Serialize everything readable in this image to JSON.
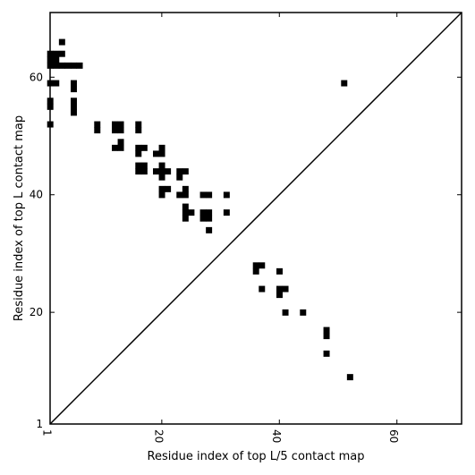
{
  "chart_data": {
    "type": "heatmap",
    "title": "",
    "xlabel": "Residue index of top L/5 contact map",
    "ylabel": "Residue index of top L contact map",
    "xlim": [
      1,
      71
    ],
    "ylim": [
      1,
      71
    ],
    "x_ticks": [
      1,
      20,
      40,
      60
    ],
    "y_ticks": [
      1,
      20,
      40,
      60
    ],
    "grid": false,
    "cell_color": "#000000",
    "diagonal": {
      "from": [
        1,
        1
      ],
      "to": [
        71,
        71
      ]
    },
    "upper_left_cells": [
      [
        3,
        66
      ],
      [
        3,
        64
      ],
      [
        2,
        64
      ],
      [
        1,
        64
      ],
      [
        2,
        63
      ],
      [
        1,
        63
      ],
      [
        2,
        62
      ],
      [
        1,
        62
      ],
      [
        3,
        62
      ],
      [
        4,
        62
      ],
      [
        5,
        62
      ],
      [
        6,
        62
      ],
      [
        1,
        59
      ],
      [
        2,
        59
      ],
      [
        5,
        59
      ],
      [
        5,
        58
      ],
      [
        1,
        56
      ],
      [
        1,
        55
      ],
      [
        5,
        56
      ],
      [
        5,
        55
      ],
      [
        5,
        54
      ],
      [
        1,
        52
      ],
      [
        9,
        52
      ],
      [
        9,
        51
      ],
      [
        12,
        52
      ],
      [
        13,
        52
      ],
      [
        12,
        51
      ],
      [
        13,
        51
      ],
      [
        13,
        49
      ],
      [
        12,
        48
      ],
      [
        13,
        48
      ],
      [
        16,
        52
      ],
      [
        16,
        51
      ],
      [
        16,
        48
      ],
      [
        17,
        48
      ],
      [
        16,
        47
      ],
      [
        16,
        45
      ],
      [
        17,
        45
      ],
      [
        16,
        44
      ],
      [
        17,
        44
      ],
      [
        19,
        47
      ],
      [
        20,
        47
      ],
      [
        20,
        48
      ],
      [
        20,
        45
      ],
      [
        19,
        44
      ],
      [
        20,
        44
      ],
      [
        21,
        44
      ],
      [
        20,
        43
      ],
      [
        20,
        41
      ],
      [
        21,
        41
      ],
      [
        20,
        40
      ],
      [
        23,
        44
      ],
      [
        24,
        44
      ],
      [
        23,
        43
      ],
      [
        24,
        41
      ],
      [
        23,
        40
      ],
      [
        24,
        40
      ],
      [
        24,
        38
      ],
      [
        24,
        37
      ],
      [
        25,
        37
      ],
      [
        24,
        36
      ],
      [
        27,
        40
      ],
      [
        28,
        40
      ],
      [
        31,
        40
      ],
      [
        27,
        37
      ],
      [
        28,
        37
      ],
      [
        27,
        36
      ],
      [
        28,
        36
      ],
      [
        31,
        37
      ],
      [
        28,
        34
      ],
      [
        51,
        59
      ]
    ],
    "lower_right_cells": [
      [
        36,
        28
      ],
      [
        37,
        28
      ],
      [
        36,
        27
      ],
      [
        40,
        27
      ],
      [
        37,
        24
      ],
      [
        40,
        24
      ],
      [
        41,
        24
      ],
      [
        40,
        23
      ],
      [
        41,
        20
      ],
      [
        44,
        20
      ],
      [
        48,
        17
      ],
      [
        48,
        16
      ],
      [
        48,
        13
      ],
      [
        52,
        9
      ]
    ]
  }
}
